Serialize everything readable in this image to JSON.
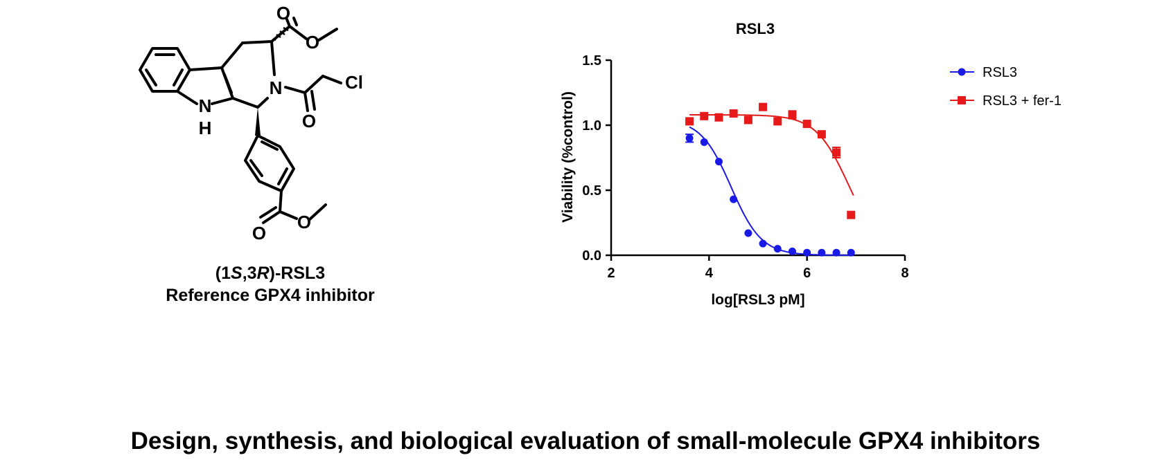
{
  "molecule": {
    "atoms": {
      "o_top": "O",
      "o_mid": "O",
      "o_amide": "O",
      "o_bot": "O",
      "o_bot_ester": "O",
      "n_ring": "N",
      "n_indole": "N",
      "h_indole": "H",
      "cl": "Cl"
    },
    "caption_pre": "(1",
    "caption_s": "S",
    "caption_mid": ",3",
    "caption_r": "R",
    "caption_post": ")-RSL3",
    "caption_line2": "Reference GPX4 inhibitor"
  },
  "chart_data": {
    "type": "scatter",
    "title": "RSL3",
    "xlabel": "log[RSL3 pM]",
    "ylabel": "Viability (%control)",
    "xlim": [
      2,
      8
    ],
    "ylim": [
      0,
      1.5
    ],
    "x_ticks": [
      2,
      4,
      6,
      8
    ],
    "y_ticks": [
      0.0,
      0.5,
      1.0,
      1.5
    ],
    "x_tick_labels": [
      "2",
      "4",
      "6",
      "8"
    ],
    "y_tick_labels": [
      "0.0",
      "0.5",
      "1.0",
      "1.5"
    ],
    "legend_position": "top-right",
    "series": [
      {
        "name": "RSL3",
        "color": "#1a1ae6",
        "marker": "circle",
        "x": [
          3.6,
          3.9,
          4.2,
          4.5,
          4.8,
          5.1,
          5.4,
          5.7,
          6.0,
          6.3,
          6.6,
          6.9
        ],
        "y": [
          0.9,
          0.87,
          0.72,
          0.43,
          0.17,
          0.09,
          0.05,
          0.03,
          0.02,
          0.02,
          0.02,
          0.02
        ],
        "error": [
          0.03,
          0,
          0,
          0,
          0,
          0,
          0,
          0,
          0,
          0,
          0,
          0
        ],
        "fit": {
          "top": 1.05,
          "bottom": 0.0,
          "logec50": 4.45,
          "hill": 1.4,
          "x_range": [
            3.6,
            6.95
          ]
        }
      },
      {
        "name": "RSL3 + fer-1",
        "color": "#e61a1a",
        "marker": "square",
        "x": [
          3.6,
          3.9,
          4.2,
          4.5,
          4.8,
          5.1,
          5.4,
          5.7,
          6.0,
          6.3,
          6.6,
          6.9
        ],
        "y": [
          1.03,
          1.07,
          1.06,
          1.09,
          1.04,
          1.14,
          1.03,
          1.08,
          1.01,
          0.93,
          0.79,
          0.31
        ],
        "error": [
          0,
          0,
          0,
          0,
          0,
          0,
          0,
          0.03,
          0,
          0,
          0.04,
          0
        ],
        "fit": {
          "top": 1.08,
          "bottom": 0.0,
          "logec50": 6.85,
          "hill": 1.3,
          "x_range": [
            3.6,
            6.95
          ]
        }
      }
    ]
  },
  "footer": "Design, synthesis, and biological evaluation of small-molecule GPX4 inhibitors"
}
